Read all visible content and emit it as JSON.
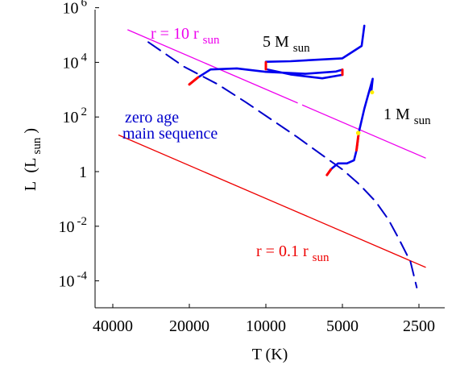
{
  "chart_data": {
    "type": "line",
    "title": "",
    "x_axis": {
      "label": "T (K)",
      "scale": "log",
      "reversed": true,
      "range": [
        45000,
        2350
      ],
      "ticks": [
        {
          "value": 40000,
          "label": "40000"
        },
        {
          "value": 20000,
          "label": "20000"
        },
        {
          "value": 10000,
          "label": "10000"
        },
        {
          "value": 5000,
          "label": "5000"
        },
        {
          "value": 2500,
          "label": "2500"
        }
      ]
    },
    "y_axis": {
      "label_main": "L",
      "label_open": "(L",
      "label_sub": "sun",
      "label_close": ")",
      "scale": "log",
      "range": [
        1e-05,
        1000000.0
      ],
      "ticks": [
        {
          "value": 1000000.0,
          "base": "10",
          "exp": "6"
        },
        {
          "value": 10000.0,
          "base": "10",
          "exp": "4"
        },
        {
          "value": 100.0,
          "base": "10",
          "exp": "2"
        },
        {
          "value": 1,
          "base": "1",
          "exp": ""
        },
        {
          "value": 0.01,
          "base": "10",
          "exp": "-2"
        },
        {
          "value": 0.0001,
          "base": "10",
          "exp": "-4"
        }
      ]
    },
    "grid": false,
    "series": [
      {
        "name": "r = 10 rsun",
        "kind": "constant-radius line",
        "color": "#ee00ee",
        "points": [
          [
            35000,
            157000.0
          ],
          [
            2350,
            3.1
          ]
        ]
      },
      {
        "name": "r = 0.1 rsun",
        "kind": "constant-radius line",
        "color": "#ee0000",
        "points": [
          [
            38000,
            22.0
          ],
          [
            2350,
            0.00031
          ]
        ]
      },
      {
        "name": "zero age main sequence",
        "kind": "dashed curve",
        "color": "#0000cc",
        "points": [
          [
            29000,
            55000.0
          ],
          [
            21000,
            7000.0
          ],
          [
            15500,
            1600.0
          ],
          [
            12000,
            350.0
          ],
          [
            9500,
            80.0
          ],
          [
            7500,
            18.0
          ],
          [
            6000,
            4
          ],
          [
            5000,
            1.2
          ],
          [
            4300,
            0.35
          ],
          [
            3700,
            0.08
          ],
          [
            3300,
            0.018
          ],
          [
            3000,
            0.0035
          ],
          [
            2700,
            0.0005
          ],
          [
            2550,
            5.7e-05
          ]
        ]
      },
      {
        "name": "5 Msun",
        "kind": "evolutionary track",
        "color": "#0000ee",
        "points": [
          [
            20000,
            1550.0
          ],
          [
            18500,
            2800.0
          ],
          [
            16500,
            5500.0
          ],
          [
            13000,
            6000.0
          ],
          [
            10000,
            4500.0
          ],
          [
            7000,
            3800.0
          ],
          [
            5300,
            4600.0
          ],
          [
            5000,
            5400.0
          ],
          [
            5000,
            3500.0
          ],
          [
            6000,
            2600.0
          ],
          [
            8000,
            3600.0
          ],
          [
            10000,
            5600.0
          ],
          [
            10000,
            10500.0
          ],
          [
            8000,
            11000.0
          ],
          [
            5000,
            14000.0
          ],
          [
            4200,
            40000.0
          ],
          [
            4100,
            220000.0
          ]
        ]
      },
      {
        "name": "1 Msun",
        "kind": "evolutionary track",
        "color": "#0000ee",
        "points": [
          [
            5750,
            0.75
          ],
          [
            5500,
            1.3
          ],
          [
            5200,
            2.0
          ],
          [
            4800,
            2.0
          ],
          [
            4500,
            2.6
          ],
          [
            4400,
            6
          ],
          [
            4300,
            30
          ],
          [
            4100,
            200
          ],
          [
            3950,
            700
          ],
          [
            3800,
            2500
          ],
          [
            3850,
            800
          ]
        ]
      }
    ],
    "annotations": {
      "radius_10": {
        "text": "r = 10 r",
        "sub": "sun"
      },
      "radius_01": {
        "text": "r = 0.1 r",
        "sub": "sun"
      },
      "mass_5": {
        "text": "5 M",
        "sub": "sun"
      },
      "mass_1": {
        "text": "1 M",
        "sub": "sun"
      },
      "zams_line1": "zero age",
      "zams_line2": "main sequence"
    }
  },
  "colors": {
    "magenta": "#ee00ee",
    "red": "#ee0000",
    "blue": "#0000cc",
    "track_blue": "#0000ee",
    "highlight_red": "#ff0000",
    "highlight_yellow": "#ffee00"
  }
}
